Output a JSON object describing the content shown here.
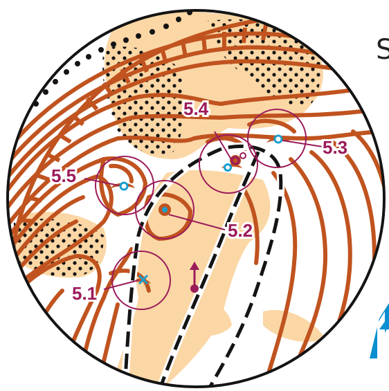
{
  "corner_letter": "S",
  "colors": {
    "contour": "#c0531f",
    "open_land": "#fbd7a6",
    "dots": "#141414",
    "trail": "#141414",
    "course": "#9b1b5a",
    "water": "#1a9fd0",
    "north_arrow": "#0a8fd0"
  },
  "icons": [
    "north-arrow-icon",
    "control-marker-icon",
    "start-triangle-icon"
  ],
  "controls": [
    {
      "id": "5.1",
      "label": "5.1"
    },
    {
      "id": "5.2",
      "label": "5.2"
    },
    {
      "id": "5.3",
      "label": "5.3"
    },
    {
      "id": "5.4",
      "label": "5.4"
    },
    {
      "id": "5.5",
      "label": "5.5"
    }
  ]
}
